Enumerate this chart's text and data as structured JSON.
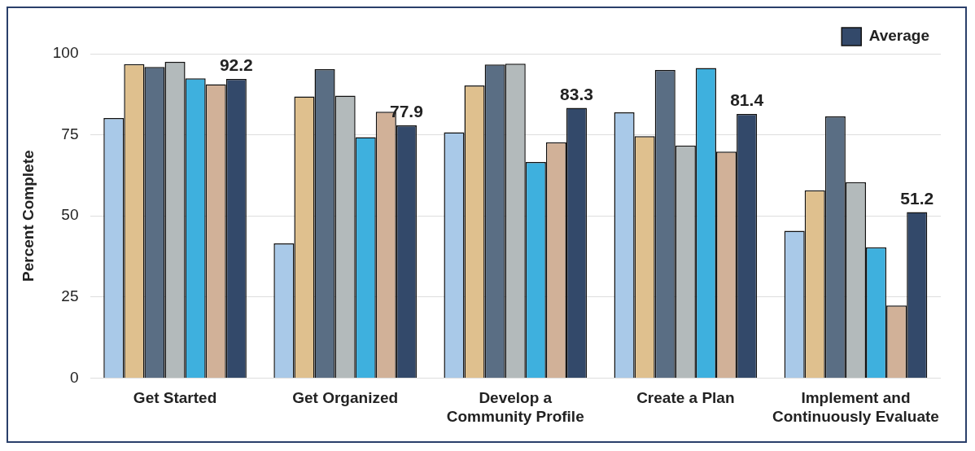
{
  "chart_data": {
    "type": "bar",
    "ylabel": "Percent Complete",
    "categories": [
      "Get Started",
      "Get Organized",
      "Develop a Community Profile",
      "Create a Plan",
      "Implement and Continuously Evaluate"
    ],
    "series": [
      {
        "color": "#a9c9e8",
        "values": [
          80.2,
          41.5,
          75.8,
          81.9,
          45.4
        ]
      },
      {
        "color": "#dfc08e",
        "values": [
          96.8,
          86.8,
          90.2,
          74.6,
          57.9
        ]
      },
      {
        "color": "#5a6e84",
        "values": [
          95.9,
          95.2,
          96.7,
          95.0,
          80.7
        ]
      },
      {
        "color": "#b3babb",
        "values": [
          97.5,
          87.1,
          96.9,
          71.7,
          60.4
        ]
      },
      {
        "color": "#3eb0de",
        "values": [
          92.4,
          74.3,
          66.6,
          95.6,
          40.3
        ]
      },
      {
        "color": "#d1b198",
        "values": [
          90.6,
          82.1,
          72.7,
          69.8,
          22.4
        ]
      },
      {
        "name": "Average",
        "color": "#33496a",
        "values": [
          92.2,
          77.9,
          83.3,
          81.4,
          51.2
        ],
        "value_labels": [
          "92.2",
          "77.9",
          "83.3",
          "81.4",
          "51.2"
        ]
      }
    ],
    "ylim": [
      0,
      100
    ],
    "yticks": [
      0,
      25,
      50,
      75,
      100
    ],
    "grid": "y",
    "legend": "top right"
  }
}
